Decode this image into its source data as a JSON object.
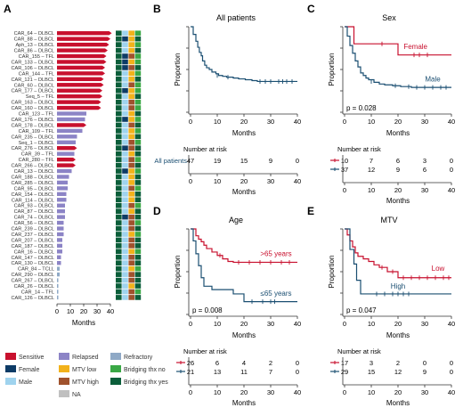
{
  "colors": {
    "sensitive": "#c8102e",
    "relapsed": "#8c84c6",
    "refractory": "#8fa9c6",
    "female": "#0d3b66",
    "male": "#9fd3ee",
    "mtv_low": "#f2b21b",
    "mtv_high": "#a0522d",
    "na": "#c0c0c0",
    "bridging_no": "#3aa845",
    "bridging_yes": "#0b5e3a",
    "km_all": "#1b4f72",
    "km_red": "#c8102e",
    "km_blue": "#1b4f72"
  },
  "chart_data": [
    {
      "panel": "A",
      "type": "bar",
      "xlabel": "Months",
      "xticks": [
        0,
        10,
        20,
        30,
        40
      ],
      "xlim": [
        0,
        40
      ],
      "categories": [
        "CAR_64 – DLBCL",
        "CAR_88 – DLBCL",
        "Aph_13 – DLBCL",
        "CAR_86 – DLBCL",
        "CAR_155 – TFL",
        "CAR_133 – DLBCL",
        "CAR_106 – DLBCL",
        "CAR_144 – TFL",
        "CAR_121 – DLBCL",
        "CAR_60 – DLBCL",
        "CAR_177 – DLBCL",
        "Seq_5 – TFL",
        "CAR_163 – DLBCL",
        "CAR_160 – DLBCL",
        "CAR_123 – TFL",
        "CAR_176 – DLBCL",
        "CAR_178 – DLBCL",
        "CAR_109 – TFL",
        "CAR_235 – DLBCL",
        "Seq_1 – DLBCL",
        "CAR_276 – DLBCL",
        "CAR_39 – TFL",
        "CAR_280 – TFL",
        "CAR_266 – DLBCL",
        "CAR_13 – DLBCL",
        "CAR_188 – DLBCL",
        "CAR_285 – DLBCL",
        "CAR_95 – DLBCL",
        "CAR_154 – DLBCL",
        "CAR_114 – DLBCL",
        "CAR_93 – DLBCL",
        "CAR_87 – DLBCL",
        "CAR_74 – DLBCL",
        "CAR_56 – DLBCL",
        "CAR_239 – DLBCL",
        "CAR_237 – DLBCL",
        "CAR_207 – DLBCL",
        "CAR_187 – DLBCL",
        "CAR_16 – DLBCL",
        "CAR_147 – DLBCL",
        "CAR_130 – DLBCL",
        "CAR_84 – TCLL",
        "CAR_290 – DLBCL",
        "CAR_267 – DLBCL",
        "CAR_26 – DLBCL",
        "CAR_14 – TFL",
        "CAR_126 – DLBCL"
      ],
      "values": [
        39,
        38,
        37,
        36,
        35,
        35,
        34,
        34,
        33,
        33,
        32,
        32,
        31,
        31,
        22,
        21,
        20,
        19,
        15,
        14,
        13,
        13,
        12,
        12,
        11,
        9,
        8,
        8,
        7,
        7,
        6,
        6,
        6,
        5,
        5,
        5,
        4,
        4,
        4,
        3,
        3,
        2,
        2,
        1,
        1,
        1,
        1
      ],
      "status": [
        "sensitive",
        "sensitive",
        "sensitive",
        "sensitive",
        "sensitive",
        "sensitive",
        "sensitive",
        "sensitive",
        "sensitive",
        "sensitive",
        "sensitive",
        "sensitive",
        "sensitive",
        "sensitive",
        "relapsed",
        "relapsed",
        "sensitive",
        "relapsed",
        "relapsed",
        "relapsed",
        "sensitive",
        "relapsed",
        "sensitive",
        "sensitive",
        "relapsed",
        "relapsed",
        "relapsed",
        "relapsed",
        "relapsed",
        "relapsed",
        "relapsed",
        "relapsed",
        "relapsed",
        "relapsed",
        "relapsed",
        "relapsed",
        "relapsed",
        "relapsed",
        "relapsed",
        "relapsed",
        "relapsed",
        "refractory",
        "refractory",
        "refractory",
        "refractory",
        "refractory",
        "refractory"
      ],
      "sex": [
        "male",
        "female",
        "male",
        "male",
        "female",
        "female",
        "female",
        "male",
        "male",
        "male",
        "female",
        "male",
        "male",
        "male",
        "male",
        "female",
        "male",
        "male",
        "male",
        "male",
        "female",
        "male",
        "male",
        "male",
        "female",
        "male",
        "male",
        "male",
        "male",
        "male",
        "male",
        "male",
        "female",
        "male",
        "male",
        "male",
        "male",
        "male",
        "male",
        "male",
        "male",
        "male",
        "male",
        "male",
        "male",
        "male",
        "male"
      ],
      "mtv": [
        "mtv_low",
        "mtv_low",
        "mtv_low",
        "mtv_low",
        "mtv_high",
        "mtv_low",
        "mtv_high",
        "mtv_low",
        "mtv_low",
        "mtv_high",
        "mtv_low",
        "mtv_low",
        "mtv_high",
        "mtv_high",
        "mtv_low",
        "mtv_low",
        "mtv_high",
        "mtv_low",
        "mtv_low",
        "mtv_high",
        "mtv_high",
        "mtv_low",
        "mtv_high",
        "mtv_high",
        "mtv_low",
        "mtv_low",
        "mtv_low",
        "mtv_high",
        "mtv_low",
        "mtv_low",
        "mtv_high",
        "mtv_low",
        "mtv_high",
        "mtv_high",
        "mtv_high",
        "mtv_low",
        "mtv_high",
        "mtv_high",
        "mtv_low",
        "mtv_high",
        "mtv_high",
        "mtv_low",
        "mtv_high",
        "mtv_high",
        "mtv_low",
        "mtv_high",
        "mtv_high"
      ],
      "bridging": [
        "bridging_no",
        "bridging_yes",
        "bridging_no",
        "bridging_yes",
        "bridging_no",
        "bridging_no",
        "bridging_yes",
        "bridging_no",
        "bridging_yes",
        "bridging_no",
        "bridging_no",
        "bridging_yes",
        "bridging_no",
        "bridging_no",
        "bridging_yes",
        "bridging_no",
        "bridging_yes",
        "bridging_no",
        "bridging_yes",
        "bridging_no",
        "bridging_yes",
        "bridging_yes",
        "bridging_no",
        "bridging_yes",
        "bridging_no",
        "bridging_yes",
        "bridging_yes",
        "bridging_no",
        "bridging_yes",
        "bridging_yes",
        "bridging_no",
        "bridging_yes",
        "bridging_yes",
        "bridging_no",
        "bridging_yes",
        "bridging_no",
        "bridging_yes",
        "bridging_yes",
        "bridging_no",
        "bridging_yes",
        "bridging_yes",
        "bridging_no",
        "bridging_yes",
        "bridging_yes",
        "bridging_yes",
        "bridging_no",
        "bridging_yes"
      ],
      "legend": [
        {
          "key": "sensitive",
          "label": "Sensitive"
        },
        {
          "key": "relapsed",
          "label": "Relapsed"
        },
        {
          "key": "refractory",
          "label": "Refractory"
        },
        {
          "key": "female",
          "label": "Female"
        },
        {
          "key": "mtv_low",
          "label": "MTV low"
        },
        {
          "key": "bridging_no",
          "label": "Bridging thx no"
        },
        {
          "key": "male",
          "label": "Male"
        },
        {
          "key": "mtv_high",
          "label": "MTV high"
        },
        {
          "key": "bridging_yes",
          "label": "Bridging thx yes"
        },
        {
          "key": "na",
          "label": "NA"
        }
      ]
    },
    {
      "panel": "B",
      "type": "line",
      "title": "All patients",
      "xlabel": "Months",
      "ylabel": "Proportion",
      "xlim": [
        0,
        40
      ],
      "ylim": [
        0,
        1
      ],
      "xticks": [
        0,
        10,
        20,
        30,
        40
      ],
      "yticks": [
        0,
        0.25,
        0.5,
        0.75,
        1
      ],
      "series": [
        {
          "name": "All patients",
          "color": "km_all",
          "x": [
            0,
            1,
            2,
            2.7,
            3.3,
            4,
            4.5,
            5.3,
            6,
            7,
            8,
            9.5,
            10.5,
            12,
            13.5,
            16,
            18,
            20.5,
            23,
            25,
            40
          ],
          "y": [
            1,
            0.91,
            0.83,
            0.76,
            0.7,
            0.66,
            0.6,
            0.55,
            0.52,
            0.5,
            0.47,
            0.45,
            0.43,
            0.42,
            0.41,
            0.4,
            0.39,
            0.38,
            0.37,
            0.36,
            0.36
          ],
          "censor": [
            [
              10,
              0.43
            ],
            [
              14,
              0.41
            ],
            [
              26,
              0.36
            ],
            [
              28,
              0.36
            ],
            [
              30,
              0.36
            ],
            [
              33,
              0.36
            ],
            [
              34.5,
              0.36
            ],
            [
              36,
              0.36
            ],
            [
              38,
              0.36
            ]
          ]
        }
      ],
      "risk_table": {
        "title": "Number at risk",
        "rows": [
          {
            "label": "All patients",
            "color": "km_all",
            "values": [
              "47",
              "19",
              "15",
              "9",
              "0"
            ]
          }
        ]
      }
    },
    {
      "panel": "C",
      "type": "line",
      "title": "Sex",
      "xlabel": "Months",
      "ylabel": "Proportion",
      "xlim": [
        0,
        40
      ],
      "ylim": [
        0,
        1
      ],
      "xticks": [
        0,
        10,
        20,
        30,
        40
      ],
      "yticks": [
        0,
        0.25,
        0.5,
        0.75,
        1
      ],
      "annotation": "p = 0.028",
      "series": [
        {
          "name": "Female",
          "color": "km_red",
          "x": [
            0,
            3.5,
            9,
            20,
            40
          ],
          "y": [
            1,
            0.8,
            0.8,
            0.67,
            0.67
          ],
          "censor": [
            [
              14,
              0.8
            ],
            [
              26,
              0.67
            ],
            [
              28,
              0.67
            ],
            [
              31,
              0.67
            ]
          ]
        },
        {
          "name": "Male",
          "color": "km_blue",
          "x": [
            0,
            1,
            2,
            3,
            4,
            5,
            6,
            7,
            8,
            9,
            11,
            13,
            15,
            18,
            21,
            25,
            40
          ],
          "y": [
            1,
            0.89,
            0.78,
            0.69,
            0.6,
            0.53,
            0.46,
            0.43,
            0.4,
            0.38,
            0.35,
            0.33,
            0.32,
            0.31,
            0.3,
            0.29,
            0.29
          ],
          "censor": [
            [
              10,
              0.36
            ],
            [
              19,
              0.31
            ],
            [
              24,
              0.3
            ],
            [
              27,
              0.29
            ],
            [
              30,
              0.29
            ],
            [
              33,
              0.29
            ],
            [
              36,
              0.29
            ],
            [
              38,
              0.29
            ]
          ]
        }
      ],
      "risk_table": {
        "title": "Number at risk",
        "rows": [
          {
            "label": "",
            "color": "km_red",
            "values": [
              "10",
              "7",
              "6",
              "3",
              "0"
            ]
          },
          {
            "label": "",
            "color": "km_blue",
            "values": [
              "37",
              "12",
              "9",
              "6",
              "0"
            ]
          }
        ]
      }
    },
    {
      "panel": "D",
      "type": "line",
      "title": "Age",
      "xlabel": "Months",
      "ylabel": "Proportion",
      "xlim": [
        0,
        40
      ],
      "ylim": [
        0,
        1
      ],
      "xticks": [
        0,
        10,
        20,
        30,
        40
      ],
      "yticks": [
        0,
        0.25,
        0.5,
        0.75,
        1
      ],
      "annotation": "p = 0.008",
      "series": [
        {
          "name": ">65 years",
          "color": "km_red",
          "x": [
            0,
            2,
            3,
            4,
            5,
            6,
            8,
            10,
            12,
            14,
            16,
            40
          ],
          "y": [
            1,
            0.92,
            0.88,
            0.85,
            0.81,
            0.77,
            0.73,
            0.69,
            0.65,
            0.62,
            0.61,
            0.61
          ],
          "censor": [
            [
              11,
              0.69
            ],
            [
              18,
              0.61
            ],
            [
              22,
              0.61
            ],
            [
              26,
              0.61
            ],
            [
              30,
              0.61
            ],
            [
              34,
              0.61
            ],
            [
              37,
              0.61
            ]
          ]
        },
        {
          "name": "≤65 years",
          "color": "km_blue",
          "x": [
            0,
            1,
            2,
            3,
            4,
            5,
            8,
            16,
            20,
            40
          ],
          "y": [
            1,
            0.86,
            0.71,
            0.57,
            0.43,
            0.33,
            0.29,
            0.24,
            0.15,
            0.15
          ],
          "censor": [
            [
              23,
              0.15
            ],
            [
              27,
              0.15
            ],
            [
              30,
              0.15
            ],
            [
              31.5,
              0.15
            ]
          ]
        }
      ],
      "risk_table": {
        "title": "Number at risk",
        "rows": [
          {
            "label": "",
            "color": "km_red",
            "values": [
              "26",
              "6",
              "4",
              "2",
              "0"
            ]
          },
          {
            "label": "",
            "color": "km_blue",
            "values": [
              "21",
              "13",
              "11",
              "7",
              "0"
            ]
          }
        ]
      }
    },
    {
      "panel": "E",
      "type": "line",
      "title": "MTV",
      "xlabel": "Months",
      "ylabel": "Proportion",
      "xlim": [
        0,
        40
      ],
      "ylim": [
        0,
        1
      ],
      "xticks": [
        0,
        10,
        20,
        30,
        40
      ],
      "yticks": [
        0,
        0.25,
        0.5,
        0.75,
        1
      ],
      "annotation": "p = 0.047",
      "series": [
        {
          "name": "Low",
          "color": "km_red",
          "x": [
            0,
            1,
            2,
            3,
            4,
            5,
            7,
            9,
            11,
            13,
            16,
            20,
            40
          ],
          "y": [
            1,
            0.93,
            0.86,
            0.79,
            0.72,
            0.68,
            0.65,
            0.62,
            0.58,
            0.55,
            0.5,
            0.43,
            0.43
          ],
          "censor": [
            [
              14,
              0.55
            ],
            [
              18,
              0.5
            ],
            [
              22,
              0.43
            ],
            [
              25,
              0.43
            ],
            [
              28,
              0.43
            ],
            [
              31,
              0.43
            ],
            [
              34,
              0.43
            ],
            [
              37,
              0.43
            ],
            [
              39,
              0.43
            ]
          ]
        },
        {
          "name": "High",
          "color": "km_blue",
          "x": [
            0,
            2,
            3.5,
            4.5,
            6,
            40
          ],
          "y": [
            1,
            0.76,
            0.59,
            0.4,
            0.24,
            0.24
          ],
          "censor": [
            [
              12,
              0.24
            ],
            [
              15,
              0.24
            ],
            [
              18,
              0.24
            ],
            [
              20,
              0.24
            ],
            [
              22,
              0.24
            ],
            [
              24,
              0.24
            ]
          ]
        }
      ],
      "risk_table": {
        "title": "Number at risk",
        "rows": [
          {
            "label": "",
            "color": "km_red",
            "values": [
              "17",
              "3",
              "2",
              "0",
              "0"
            ]
          },
          {
            "label": "",
            "color": "km_blue",
            "values": [
              "29",
              "15",
              "12",
              "9",
              "0"
            ]
          }
        ]
      }
    }
  ]
}
